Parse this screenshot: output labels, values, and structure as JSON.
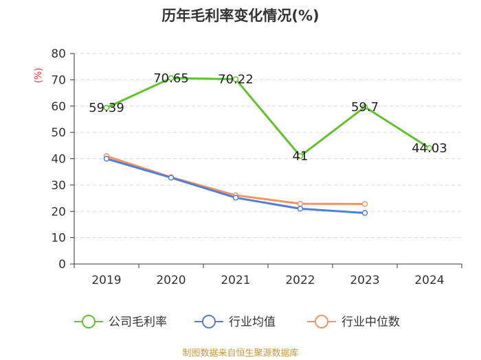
{
  "chart_data": {
    "type": "line",
    "title": "历年毛利率变化情况(%)",
    "ylabel": "(%)",
    "xlabel": "",
    "ylim": [
      0,
      80
    ],
    "yticks": [
      0,
      10,
      20,
      30,
      40,
      50,
      60,
      70,
      80
    ],
    "categories": [
      "2019",
      "2020",
      "2021",
      "2022",
      "2023",
      "2024"
    ],
    "series": [
      {
        "name": "公司毛利率",
        "color": "#5ec42a",
        "values": [
          59.39,
          70.65,
          70.22,
          41,
          59.7,
          44.03
        ],
        "labels": [
          "59.39",
          "70.65",
          "70.22",
          "41",
          "59.7",
          "44.03"
        ]
      },
      {
        "name": "行业均值",
        "color": "#4f7fd8",
        "values": [
          40.0,
          32.8,
          25.2,
          21.0,
          19.4,
          null
        ]
      },
      {
        "name": "行业中位数",
        "color": "#f39362",
        "values": [
          41.0,
          33.0,
          26.1,
          22.9,
          22.8,
          null
        ]
      }
    ],
    "grid": true,
    "legend": "bottom"
  },
  "source": "制图数据来自恒生聚源数据库"
}
